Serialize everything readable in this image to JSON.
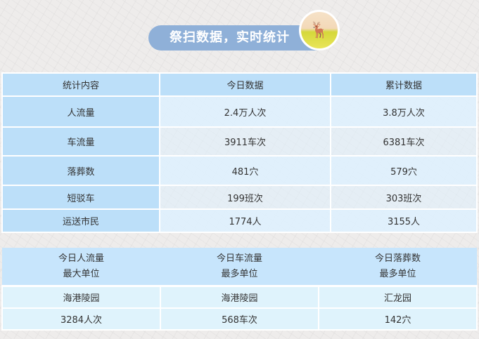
{
  "banner": {
    "title": "祭扫数据，实时统计",
    "mascot_icon": "deer-mascot-icon"
  },
  "stats_table": {
    "headers": [
      "统计内容",
      "今日数据",
      "累计数据"
    ],
    "rows": [
      [
        "人流量",
        "2.4万人次",
        "3.8万人次"
      ],
      [
        "车流量",
        "3911车次",
        "6381车次"
      ],
      [
        "落葬数",
        "481穴",
        "579穴"
      ],
      [
        "短驳车",
        "199班次",
        "303班次"
      ],
      [
        "运送市民",
        "1774人",
        "3155人"
      ]
    ]
  },
  "top_units_table": {
    "headers": [
      [
        "今日人流量",
        "最大单位"
      ],
      [
        "今日车流量",
        "最多单位"
      ],
      [
        "今日落葬数",
        "最多单位"
      ]
    ],
    "rows": [
      [
        "海港陵园",
        "海港陵园",
        "汇龙园"
      ],
      [
        "3284人次",
        "568车次",
        "142穴"
      ]
    ]
  },
  "colors": {
    "banner": "#8fb0d8",
    "header": "#bcdff9",
    "cell": "#def0fd"
  }
}
